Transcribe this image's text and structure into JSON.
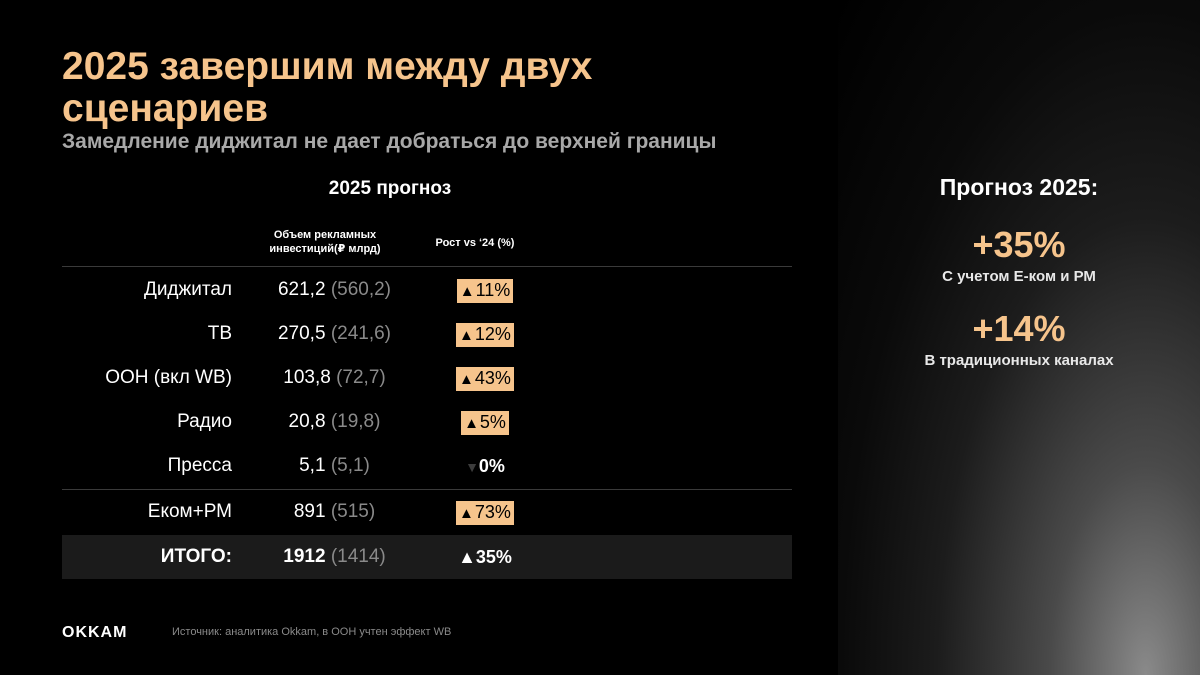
{
  "title": "2025 завершим между двух сценариев",
  "subtitle": "Замедление диджитал не дает добраться до верхней границы",
  "forecast_heading": "2025 прогноз",
  "columns": {
    "volume": "Объем рекламных инвестиций(₽ млрд)",
    "growth": "Рост vs ‘24 (%)"
  },
  "rows": [
    {
      "label": "Диджитал",
      "value": "621,2",
      "prev": "(560,2)",
      "growth": "11%",
      "arrow": "▲"
    },
    {
      "label": "ТВ",
      "value": "270,5",
      "prev": "(241,6)",
      "growth": "12%",
      "arrow": "▲"
    },
    {
      "label": "OOH (вкл WB)",
      "value": "103,8",
      "prev": "(72,7)",
      "growth": "43%",
      "arrow": "▲"
    },
    {
      "label": "Радио",
      "value": "20,8",
      "prev": "(19,8)",
      "growth": "5%",
      "arrow": "▲"
    },
    {
      "label": "Пресса",
      "value": "5,1",
      "prev": "(5,1)",
      "growth": "0%",
      "arrow": "▼"
    },
    {
      "label": "Еком+РМ",
      "value": "891",
      "prev": "(515)",
      "growth": "73%",
      "arrow": "▲"
    }
  ],
  "total": {
    "label": "ИТОГО:",
    "value": "1912",
    "prev": "(1414)",
    "growth": "35%",
    "arrow": "▲"
  },
  "logo": "OKKAM",
  "source": "Источник: аналитика Okkam, в ООН учтен эффект WB",
  "sidebar": {
    "title": "Прогноз 2025:",
    "stat1_value": "+35%",
    "stat1_label": "С учетом Е-ком и РМ",
    "stat2_value": "+14%",
    "stat2_label": "В традиционных каналах"
  },
  "colors": {
    "accent": "#f6c48c",
    "muted": "#8a8a8a",
    "background": "#000000"
  }
}
